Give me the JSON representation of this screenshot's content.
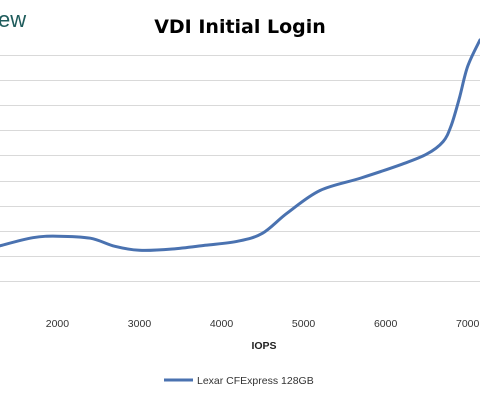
{
  "brand_fragment": "ew",
  "chart_data": {
    "type": "line",
    "title": "VDI Initial Login",
    "xlabel": "IOPS",
    "ylabel": "",
    "xlim": [
      1300,
      7150
    ],
    "ylim": [
      0,
      10
    ],
    "x_ticks": [
      2000,
      3000,
      4000,
      5000,
      6000,
      7000
    ],
    "y_gridlines": [
      1,
      2,
      3,
      4,
      5,
      6,
      7,
      8,
      9,
      10
    ],
    "grid": true,
    "legend_position": "bottom",
    "series": [
      {
        "name": "Lexar CFExpress 128GB",
        "color": "#4a72b0",
        "x": [
          1300,
          1700,
          2000,
          2400,
          2700,
          3000,
          3400,
          3800,
          4200,
          4500,
          4800,
          5200,
          5700,
          6200,
          6500,
          6700,
          6800,
          6900,
          7000,
          7150
        ],
        "y": [
          2.4,
          2.72,
          2.78,
          2.7,
          2.38,
          2.22,
          2.27,
          2.42,
          2.58,
          2.9,
          3.7,
          4.6,
          5.1,
          5.65,
          6.05,
          6.55,
          7.2,
          8.3,
          9.55,
          10.6
        ]
      }
    ]
  }
}
